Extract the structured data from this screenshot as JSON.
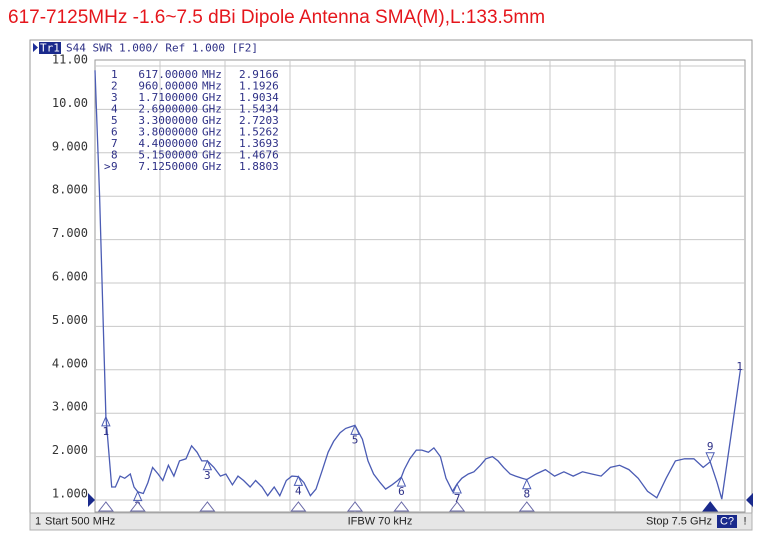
{
  "chart_data": {
    "type": "line",
    "title": "617-7125MHz -1.6~7.5 dBi Dipole Antenna SMA(M),L:133.5mm",
    "trace_tag": "Tr1",
    "header": "S44 SWR 1.000/ Ref 1.000 [F2]",
    "x": [
      500,
      550,
      600,
      617,
      680,
      720,
      770,
      820,
      880,
      920,
      960,
      1020,
      1070,
      1120,
      1180,
      1230,
      1290,
      1350,
      1410,
      1480,
      1540,
      1600,
      1650,
      1710,
      1780,
      1850,
      1910,
      1980,
      2040,
      2100,
      2170,
      2230,
      2300,
      2360,
      2430,
      2490,
      2560,
      2620,
      2690,
      2750,
      2820,
      2880,
      2950,
      3010,
      3070,
      3140,
      3200,
      3270,
      3300,
      3380,
      3440,
      3500,
      3570,
      3630,
      3700,
      3760,
      3800,
      3830,
      3890,
      3960,
      4020,
      4090,
      4150,
      4220,
      4280,
      4350,
      4400,
      4450,
      4520,
      4580,
      4650,
      4710,
      4780,
      4840,
      4900,
      4970,
      5030,
      5100,
      5150,
      5250,
      5350,
      5450,
      5550,
      5650,
      5750,
      5850,
      5950,
      6050,
      6150,
      6250,
      6350,
      6450,
      6550,
      6650,
      6750,
      6850,
      6950,
      7050,
      7125,
      7200,
      7250,
      7350,
      7450
    ],
    "series": [
      {
        "name": "1",
        "color": "#4b5cb4",
        "values": [
          10.9,
          8.0,
          4.2,
          2.92,
          1.3,
          1.3,
          1.55,
          1.5,
          1.6,
          1.3,
          1.19,
          1.15,
          1.4,
          1.75,
          1.6,
          1.45,
          1.8,
          1.55,
          1.9,
          1.95,
          2.25,
          2.1,
          1.9,
          1.9,
          1.75,
          1.55,
          1.6,
          1.35,
          1.55,
          1.45,
          1.3,
          1.45,
          1.3,
          1.1,
          1.3,
          1.1,
          1.45,
          1.55,
          1.54,
          1.4,
          1.1,
          1.25,
          1.7,
          2.1,
          2.35,
          2.55,
          2.65,
          2.7,
          2.72,
          2.4,
          1.9,
          1.6,
          1.4,
          1.25,
          1.35,
          1.45,
          1.53,
          1.7,
          1.95,
          2.15,
          2.15,
          2.1,
          2.2,
          2.0,
          1.5,
          1.2,
          1.37,
          1.5,
          1.6,
          1.65,
          1.8,
          1.95,
          2.0,
          1.9,
          1.75,
          1.6,
          1.55,
          1.5,
          1.47,
          1.6,
          1.7,
          1.55,
          1.65,
          1.55,
          1.65,
          1.6,
          1.55,
          1.75,
          1.8,
          1.7,
          1.5,
          1.2,
          1.05,
          1.5,
          1.9,
          1.95,
          1.95,
          1.75,
          1.88,
          1.4,
          1.02,
          2.5,
          4.0
        ]
      }
    ],
    "xlim": [
      500,
      7500
    ],
    "ylim": [
      1,
      11
    ],
    "yticks": [
      {
        "value": 11,
        "label": "11.00"
      },
      {
        "value": 10,
        "label": "10.00"
      },
      {
        "value": 9,
        "label": "9.000"
      },
      {
        "value": 8,
        "label": "8.000"
      },
      {
        "value": 7,
        "label": "7.000"
      },
      {
        "value": 6,
        "label": "6.000"
      },
      {
        "value": 5,
        "label": "5.000"
      },
      {
        "value": 4,
        "label": "4.000"
      },
      {
        "value": 3,
        "label": "3.000"
      },
      {
        "value": 2,
        "label": "2.000"
      },
      {
        "value": 1,
        "label": "1.000"
      }
    ],
    "grid": true,
    "ref_level": 1,
    "active_prefix": ">",
    "markers": [
      {
        "label": "1",
        "freq": {
          "value": 617,
          "label": "617.00000"
        },
        "unit": "MHz",
        "value": 2.9166
      },
      {
        "label": "2",
        "freq": {
          "value": 960,
          "label": "960.00000"
        },
        "unit": "MHz",
        "value": 1.1926
      },
      {
        "label": "3",
        "freq": {
          "value": 1710,
          "label": "1.7100000"
        },
        "unit": "GHz",
        "value": 1.9034
      },
      {
        "label": "4",
        "freq": {
          "value": 2690,
          "label": "2.6900000"
        },
        "unit": "GHz",
        "value": 1.5434
      },
      {
        "label": "5",
        "freq": {
          "value": 3300,
          "label": "3.3000000"
        },
        "unit": "GHz",
        "value": 2.7203
      },
      {
        "label": "6",
        "freq": {
          "value": 3800,
          "label": "3.8000000"
        },
        "unit": "GHz",
        "value": 1.5262
      },
      {
        "label": "7",
        "freq": {
          "value": 4400,
          "label": "4.4000000"
        },
        "unit": "GHz",
        "value": 1.3693
      },
      {
        "label": "8",
        "freq": {
          "value": 5150,
          "label": "5.1500000"
        },
        "unit": "GHz",
        "value": 1.4676
      },
      {
        "label": "9",
        "freq": {
          "value": 7125,
          "label": "7.1250000"
        },
        "unit": "GHz",
        "value": 1.8803,
        "active": true
      }
    ]
  },
  "footer": {
    "channel": "1",
    "start": "Start 500 MHz",
    "ifbw": "IFBW 70 kHz",
    "stop": "Stop 7.5 GHz",
    "status": "C?",
    "warning": "!"
  }
}
